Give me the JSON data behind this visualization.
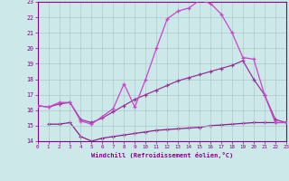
{
  "xlabel": "Windchill (Refroidissement éolien,°C)",
  "bg_color": "#cce8e8",
  "grid_color": "#aacaca",
  "line_color_1": "#cc44cc",
  "line_color_2": "#993399",
  "line_color_3": "#882288",
  "xlim": [
    0,
    23
  ],
  "ylim": [
    14,
    23
  ],
  "xticks": [
    0,
    1,
    2,
    3,
    4,
    5,
    6,
    7,
    8,
    9,
    10,
    11,
    12,
    13,
    14,
    15,
    16,
    17,
    18,
    19,
    20,
    21,
    22,
    23
  ],
  "yticks": [
    14,
    15,
    16,
    17,
    18,
    19,
    20,
    21,
    22,
    23
  ],
  "curve1_x": [
    0,
    1,
    2,
    3,
    4,
    5,
    6,
    7,
    8,
    9,
    10,
    11,
    12,
    13,
    14,
    15,
    16,
    17,
    18,
    19,
    20,
    21,
    22,
    23
  ],
  "curve1_y": [
    16.3,
    16.2,
    16.5,
    16.5,
    15.3,
    15.1,
    15.6,
    16.1,
    17.7,
    16.2,
    18.0,
    20.0,
    21.9,
    22.4,
    22.6,
    23.1,
    22.9,
    22.2,
    21.0,
    19.4,
    19.3,
    17.0,
    15.2,
    15.2
  ],
  "curve2_x": [
    0,
    1,
    2,
    3,
    4,
    5,
    6,
    7,
    8,
    9,
    10,
    11,
    12,
    13,
    14,
    15,
    16,
    17,
    18,
    19,
    20,
    21,
    22,
    23
  ],
  "curve2_y": [
    16.3,
    16.2,
    16.4,
    16.5,
    15.4,
    15.2,
    15.5,
    15.9,
    16.3,
    16.7,
    17.0,
    17.3,
    17.6,
    17.9,
    18.1,
    18.3,
    18.5,
    18.7,
    18.9,
    19.2,
    18.0,
    17.0,
    15.4,
    15.2
  ],
  "curve3_x": [
    1,
    2,
    3,
    4,
    5,
    6,
    7,
    8,
    9,
    10,
    11,
    12,
    13,
    14,
    15,
    16,
    17,
    18,
    19,
    20,
    21,
    22,
    23
  ],
  "curve3_y": [
    15.1,
    15.1,
    15.2,
    14.3,
    14.0,
    14.2,
    14.3,
    14.4,
    14.5,
    14.6,
    14.7,
    14.75,
    14.8,
    14.85,
    14.9,
    15.0,
    15.05,
    15.1,
    15.15,
    15.2,
    15.2,
    15.2,
    15.2
  ]
}
